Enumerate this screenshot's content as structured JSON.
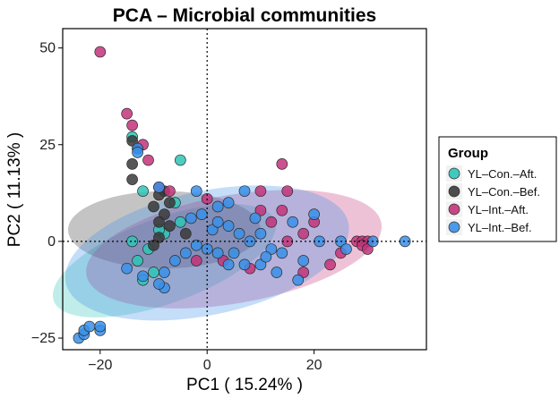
{
  "chart_data": {
    "type": "scatter",
    "title": "PCA – Microbial communities",
    "xlabel": "PC1 ( 15.24% )",
    "ylabel": "PC2 ( 11.13% )",
    "xlim": [
      -27,
      41
    ],
    "ylim": [
      -28,
      55
    ],
    "xticks": [
      -20,
      0,
      20
    ],
    "yticks": [
      -25,
      0,
      25,
      50
    ],
    "xtick_labels": [
      "−20",
      "0",
      "20"
    ],
    "ytick_labels": [
      "−25",
      "0",
      "25",
      "50"
    ],
    "reference_lines": {
      "x": 0,
      "y": 0,
      "style": "dotted"
    },
    "legend": {
      "title": "Group",
      "position": "right"
    },
    "series": [
      {
        "name": "YL–Con.–Aft.",
        "color": "#2ec4b6",
        "ellipse": {
          "cx": -8,
          "cy": -5,
          "rx": 22,
          "ry": 11,
          "angle": 20
        },
        "points": [
          [
            -14,
            27
          ],
          [
            -5,
            21
          ],
          [
            -12,
            13
          ],
          [
            -10,
            -8
          ],
          [
            -13,
            -5
          ],
          [
            -12,
            -10
          ],
          [
            -5,
            5
          ],
          [
            -8,
            2
          ],
          [
            -6,
            10
          ],
          [
            -14,
            0
          ],
          [
            -11,
            -2
          ],
          [
            -9,
            3
          ]
        ]
      },
      {
        "name": "YL–Con.–Bef.",
        "color": "#3a3a3a",
        "ellipse": {
          "cx": -8,
          "cy": 3,
          "rx": 18,
          "ry": 10,
          "angle": 0
        },
        "points": [
          [
            -14,
            26
          ],
          [
            -13,
            24
          ],
          [
            -14,
            20
          ],
          [
            -14,
            16
          ],
          [
            -8,
            13
          ],
          [
            -9,
            12
          ],
          [
            -10,
            9
          ],
          [
            -7,
            10
          ],
          [
            -8,
            7
          ],
          [
            -9,
            5
          ],
          [
            -7,
            4
          ],
          [
            -4,
            2
          ],
          [
            -9,
            1
          ],
          [
            -10,
            -1
          ]
        ]
      },
      {
        "name": "YL–Int.–Aft.",
        "color": "#c2347a",
        "ellipse": {
          "cx": 5,
          "cy": -2,
          "rx": 28,
          "ry": 14,
          "angle": 10
        },
        "points": [
          [
            -20,
            49
          ],
          [
            -15,
            33
          ],
          [
            -14,
            30
          ],
          [
            -12,
            25
          ],
          [
            -11,
            21
          ],
          [
            -9,
            14
          ],
          [
            -7,
            13
          ],
          [
            14,
            20
          ],
          [
            15,
            13
          ],
          [
            10,
            8
          ],
          [
            12,
            5
          ],
          [
            20,
            5
          ],
          [
            18,
            2
          ],
          [
            15,
            0
          ],
          [
            28,
            0
          ],
          [
            29,
            0
          ],
          [
            30,
            0
          ],
          [
            29,
            -1
          ],
          [
            30,
            -2
          ],
          [
            25,
            -3
          ],
          [
            23,
            -6
          ],
          [
            8,
            -7
          ],
          [
            3,
            -5
          ],
          [
            -2,
            -5
          ],
          [
            18,
            -8
          ],
          [
            14,
            8
          ],
          [
            10,
            13
          ],
          [
            0,
            11
          ]
        ]
      },
      {
        "name": "YL–Int.–Bef.",
        "color": "#3a8fe8",
        "ellipse": {
          "cx": 0,
          "cy": -3,
          "rx": 27,
          "ry": 16,
          "angle": 12
        },
        "points": [
          [
            -24,
            -25
          ],
          [
            -23,
            -24
          ],
          [
            -23,
            -23
          ],
          [
            -22,
            -22
          ],
          [
            -20,
            -23
          ],
          [
            -20,
            -22
          ],
          [
            -13,
            24
          ],
          [
            -13,
            23
          ],
          [
            -9,
            14
          ],
          [
            -2,
            13
          ],
          [
            2,
            9
          ],
          [
            4,
            10
          ],
          [
            7,
            13
          ],
          [
            -3,
            6
          ],
          [
            -1,
            7
          ],
          [
            1,
            3
          ],
          [
            2,
            5
          ],
          [
            4,
            4
          ],
          [
            6,
            2
          ],
          [
            9,
            6
          ],
          [
            8,
            0
          ],
          [
            10,
            2
          ],
          [
            12,
            -2
          ],
          [
            5,
            -3
          ],
          [
            7,
            -6
          ],
          [
            10,
            -6
          ],
          [
            14,
            -3
          ],
          [
            18,
            -5
          ],
          [
            21,
            0
          ],
          [
            25,
            0
          ],
          [
            26,
            -2
          ],
          [
            31,
            0
          ],
          [
            37,
            0
          ],
          [
            20,
            7
          ],
          [
            16,
            5
          ],
          [
            -15,
            -7
          ],
          [
            -12,
            -9
          ],
          [
            -8,
            -8
          ],
          [
            -6,
            -5
          ],
          [
            -4,
            -3
          ],
          [
            -2,
            -1
          ],
          [
            0,
            -2
          ],
          [
            2,
            -3
          ],
          [
            4,
            -6
          ],
          [
            13,
            -8
          ],
          [
            -8,
            -12
          ],
          [
            -9,
            -11
          ],
          [
            17,
            -10
          ],
          [
            11,
            -4
          ]
        ]
      }
    ]
  }
}
